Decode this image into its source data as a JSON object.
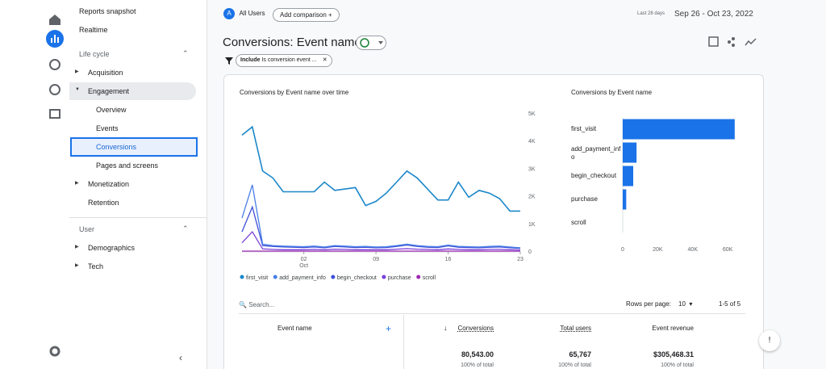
{
  "nav": {
    "top": [
      "Reports snapshot",
      "Realtime"
    ],
    "sections": [
      {
        "title": "Life cycle",
        "items": [
          {
            "label": "Acquisition",
            "level": 1,
            "arrow": "right"
          },
          {
            "label": "Engagement",
            "level": 1,
            "arrow": "down",
            "highlighted": true
          },
          {
            "label": "Overview",
            "level": 2
          },
          {
            "label": "Events",
            "level": 2
          },
          {
            "label": "Conversions",
            "level": 2,
            "selected": true
          },
          {
            "label": "Pages and screens",
            "level": 2
          },
          {
            "label": "Monetization",
            "level": 1,
            "arrow": "right"
          },
          {
            "label": "Retention",
            "level": 1
          }
        ]
      },
      {
        "title": "User",
        "items": [
          {
            "label": "Demographics",
            "level": 1,
            "arrow": "right"
          },
          {
            "label": "Tech",
            "level": 1,
            "arrow": "right"
          }
        ]
      }
    ]
  },
  "header": {
    "avatar": "A",
    "segment": "All Users",
    "add_comparison": "Add comparison",
    "date_caption": "Last 28 days",
    "date_range": "Sep 26 - Oct 23, 2022"
  },
  "page_title": "Conversions: Event name",
  "filter": {
    "prefix": "Include",
    "text": "Is conversion event ..."
  },
  "line_chart": {
    "title": "Conversions by Event name over time",
    "ylim": [
      0,
      5000
    ],
    "yticks": [
      0,
      {
        "value": 1000,
        "label": "1K"
      },
      {
        "value": 2000,
        "label": "2K"
      },
      {
        "value": 3000,
        "label": "3K"
      },
      {
        "value": 4000,
        "label": "4K"
      },
      {
        "value": 5000,
        "label": "5K"
      }
    ],
    "xticks": [
      {
        "value": 6,
        "label": "02",
        "sublabel": "Oct"
      },
      {
        "value": 13,
        "label": "09"
      },
      {
        "value": 20,
        "label": "16"
      },
      {
        "value": 27,
        "label": "23"
      }
    ],
    "series": [
      {
        "name": "first_visit",
        "color": "#1b87c9",
        "values": [
          4200,
          4500,
          2900,
          2650,
          2150,
          2150,
          2150,
          2150,
          2500,
          2200,
          2250,
          2300,
          1650,
          1800,
          2100,
          2500,
          2900,
          2650,
          2250,
          1850,
          1850,
          2500,
          1950,
          2200,
          2100,
          1900,
          1450,
          1450
        ]
      },
      {
        "name": "add_payment_info",
        "color": "#4a7fe6",
        "values": [
          1200,
          2400,
          250,
          200,
          180,
          170,
          160,
          180,
          150,
          200,
          180,
          160,
          170,
          150,
          160,
          200,
          250,
          200,
          170,
          160,
          220,
          170,
          160,
          150,
          170,
          180,
          150,
          120
        ]
      },
      {
        "name": "begin_checkout",
        "color": "#3d4fd6",
        "values": [
          700,
          1600,
          200,
          170,
          150,
          140,
          130,
          150,
          120,
          170,
          150,
          130,
          140,
          120,
          130,
          170,
          220,
          170,
          140,
          130,
          190,
          140,
          130,
          120,
          140,
          150,
          120,
          100
        ]
      },
      {
        "name": "purchase",
        "color": "#7b3fd8",
        "values": [
          300,
          700,
          80,
          60,
          50,
          50,
          50,
          60,
          50,
          70,
          60,
          50,
          50,
          50,
          50,
          70,
          90,
          70,
          60,
          50,
          80,
          60,
          50,
          50,
          60,
          60,
          50,
          40
        ]
      },
      {
        "name": "scroll",
        "color": "#9c27b0",
        "values": [
          0,
          0,
          0,
          0,
          0,
          0,
          0,
          0,
          0,
          0,
          0,
          0,
          0,
          0,
          0,
          0,
          0,
          0,
          0,
          0,
          0,
          0,
          0,
          0,
          0,
          0,
          0,
          0
        ]
      }
    ]
  },
  "bar_chart": {
    "title": "Conversions by Event name",
    "color": "#1a73e8",
    "categories": [
      "first_visit",
      "add_payment_info",
      "begin_checkout",
      "purchase",
      "scroll"
    ],
    "values": [
      64000,
      7900,
      6000,
      2000,
      0
    ],
    "xlim": [
      0,
      65000
    ],
    "xticks": [
      0,
      {
        "value": 20000,
        "label": "20K"
      },
      {
        "value": 40000,
        "label": "40K"
      },
      {
        "value": 60000,
        "label": "60K"
      }
    ]
  },
  "table": {
    "search": "Search...",
    "rows_per_page_label": "Rows per page:",
    "rows_per_page": "10",
    "pagination": "1-5 of 5",
    "columns": [
      "Event name",
      "Conversions",
      "Total users",
      "Event revenue"
    ],
    "totals": [
      {
        "value": "80,543.00",
        "share": "100% of total"
      },
      {
        "value": "65,767",
        "share": "100% of total"
      },
      {
        "value": "$305,468.31",
        "share": "100% of total"
      }
    ]
  }
}
